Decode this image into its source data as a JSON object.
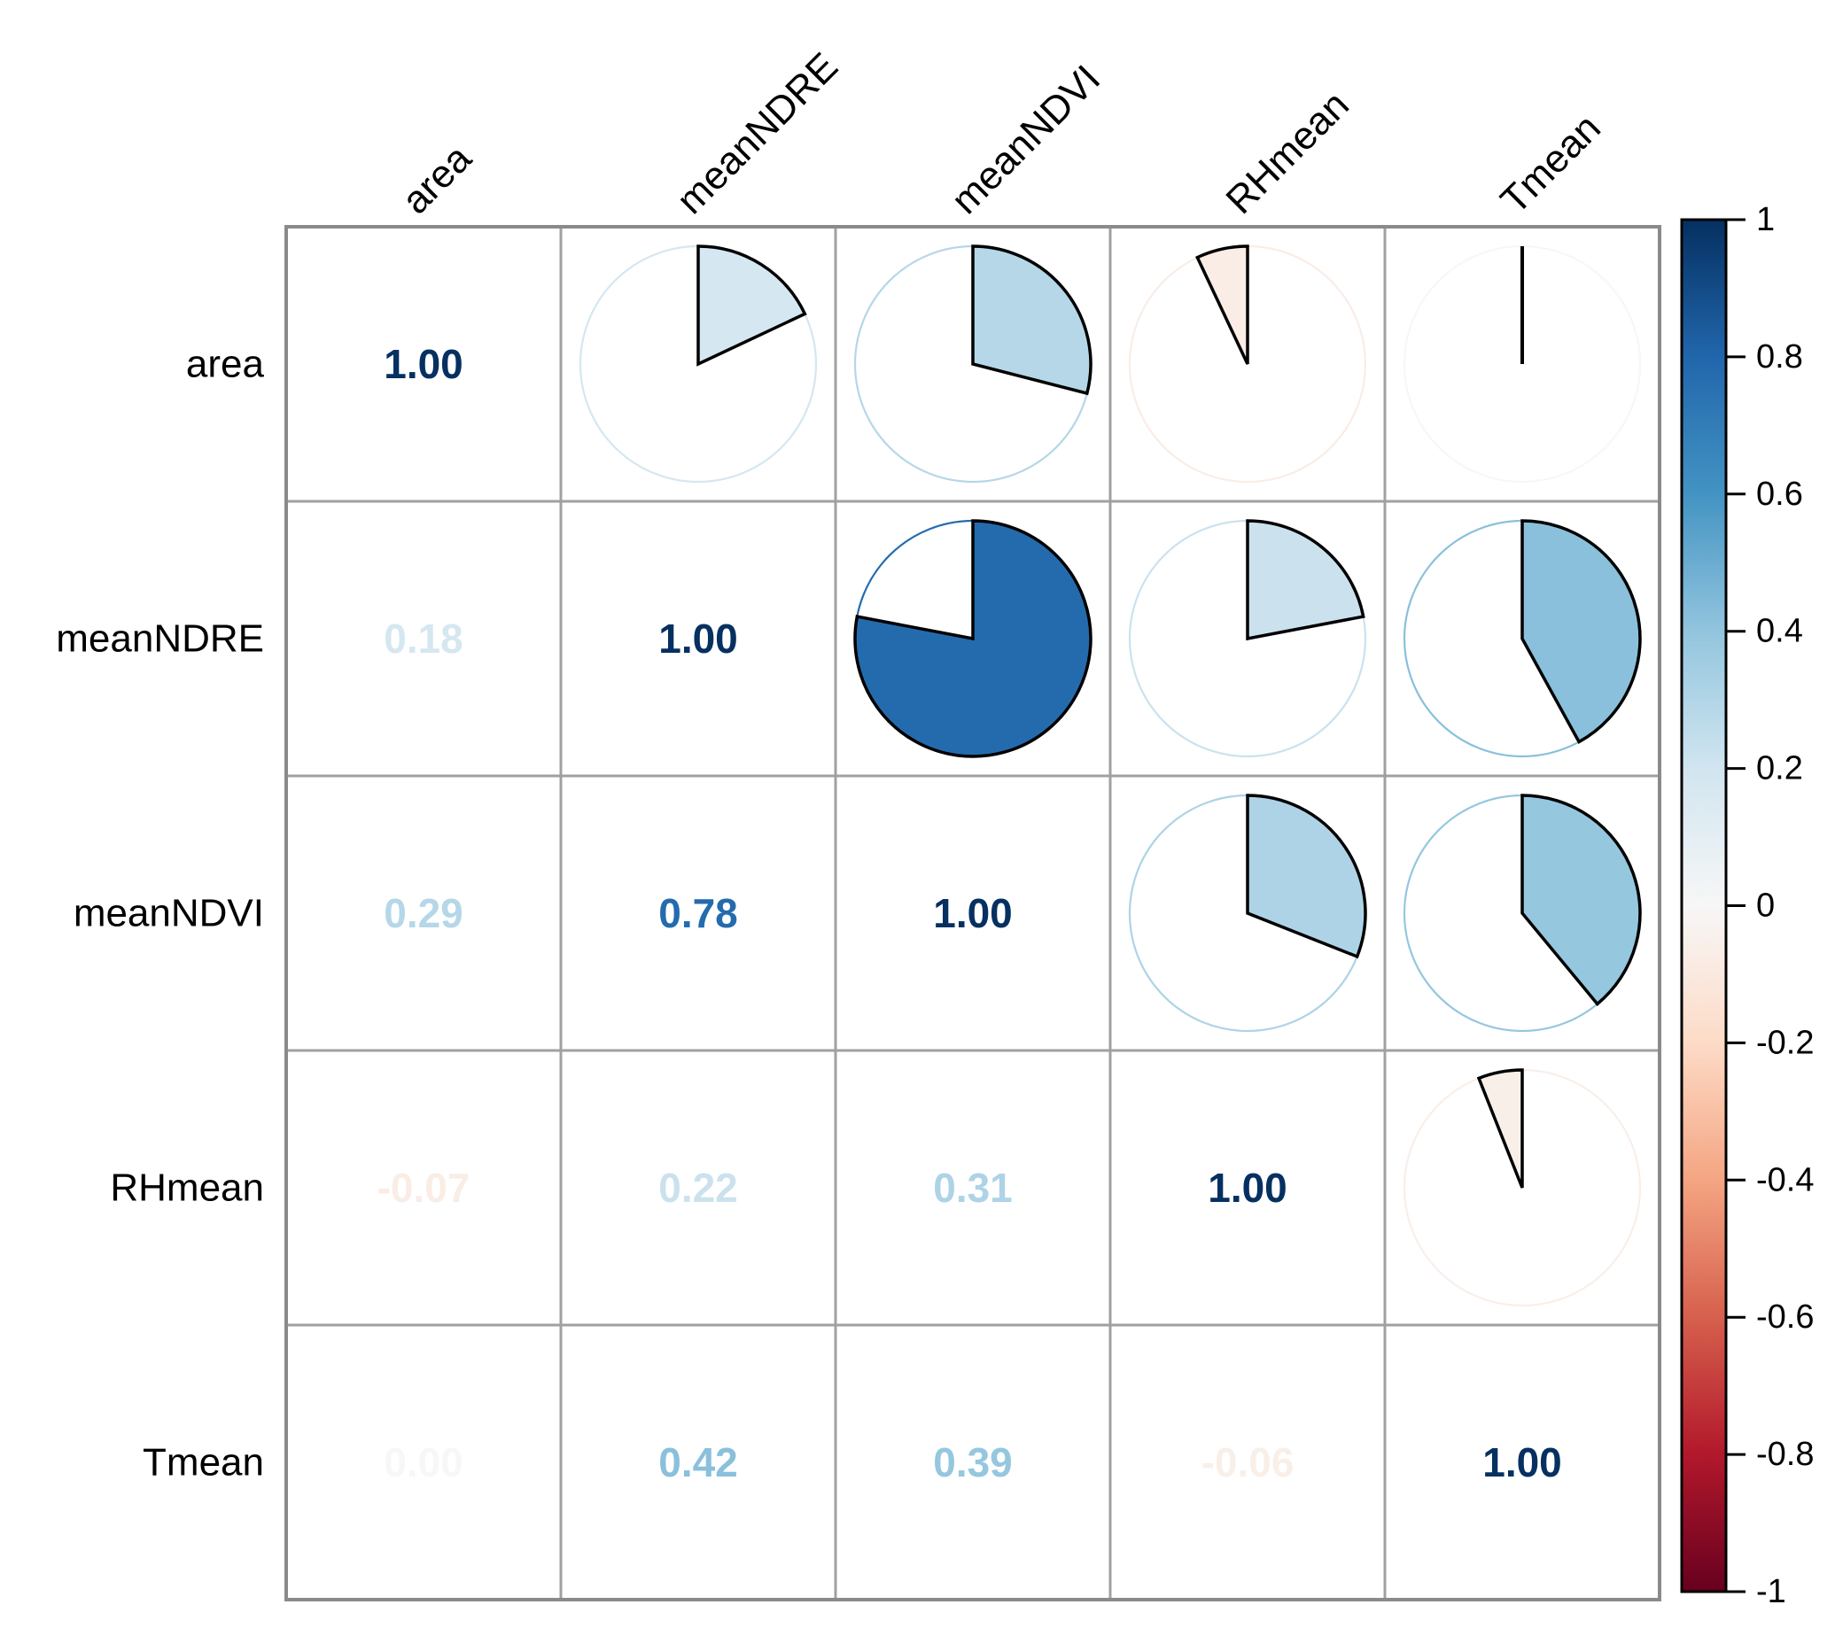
{
  "chart_data": {
    "type": "correlation-matrix",
    "upper_triangle_glyph": "pie",
    "lower_triangle_glyph": "number",
    "variables": [
      "area",
      "meanNDRE",
      "meanNDVI",
      "RHmean",
      "Tmean"
    ],
    "matrix": [
      [
        1.0,
        0.18,
        0.29,
        -0.07,
        0.0
      ],
      [
        0.18,
        1.0,
        0.78,
        0.22,
        0.42
      ],
      [
        0.29,
        0.78,
        1.0,
        0.31,
        0.39
      ],
      [
        -0.07,
        0.22,
        0.31,
        1.0,
        -0.06
      ],
      [
        0.0,
        0.42,
        0.39,
        -0.06,
        1.0
      ]
    ],
    "value_decimals": 2,
    "grid_on": true,
    "grid_color": "#a0a0a0",
    "outer_border_color": "#8a8a8a",
    "wedge_border_color": "#000000",
    "label_color": "#000000",
    "colorbar": {
      "position": "right",
      "range": [
        -1,
        1
      ],
      "tick_labels": [
        "1",
        "0.8",
        "0.6",
        "0.4",
        "0.2",
        "0",
        "-0.2",
        "-0.4",
        "-0.6",
        "-0.8",
        "-1"
      ],
      "tick_values": [
        1,
        0.8,
        0.6,
        0.4,
        0.2,
        0,
        -0.2,
        -0.4,
        -0.6,
        -0.8,
        -1
      ],
      "palette_stops": [
        {
          "v": 1.0,
          "color": "#053061"
        },
        {
          "v": 0.8,
          "color": "#2166AC"
        },
        {
          "v": 0.6,
          "color": "#4393C3"
        },
        {
          "v": 0.4,
          "color": "#92C5DE"
        },
        {
          "v": 0.2,
          "color": "#D1E5F0"
        },
        {
          "v": 0.0,
          "color": "#F7F7F7"
        },
        {
          "v": -0.2,
          "color": "#FDDBC7"
        },
        {
          "v": -0.4,
          "color": "#F4A582"
        },
        {
          "v": -0.6,
          "color": "#D6604D"
        },
        {
          "v": -0.8,
          "color": "#B2182B"
        },
        {
          "v": -1.0,
          "color": "#67001F"
        }
      ]
    }
  }
}
